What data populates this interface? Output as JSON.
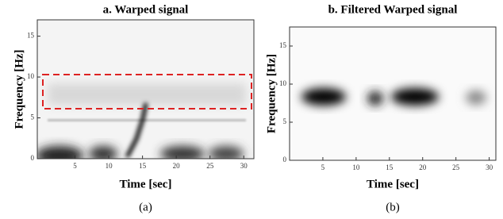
{
  "chart_data": [
    {
      "type": "spectrogram",
      "title": "a.    Warped signal",
      "x_label": "Time [sec]",
      "y_label": "Frequency [Hz]",
      "caption": "(a)",
      "xlim": [
        0,
        31.5
      ],
      "xticks": [
        5,
        10,
        15,
        20,
        25,
        30
      ],
      "ylim": [
        0,
        17
      ],
      "yticks": [
        0,
        5,
        10,
        15
      ]
    },
    {
      "type": "spectrogram",
      "title": "b.    Filtered Warped signal",
      "x_label": "Time [sec]",
      "y_label": "Frequency [Hz]",
      "caption": "(b)",
      "xlim": [
        0,
        31
      ],
      "xticks": [
        5,
        10,
        15,
        20,
        25,
        30
      ],
      "ylim": [
        0,
        17.5
      ],
      "yticks": [
        0,
        5,
        10,
        15
      ]
    }
  ]
}
